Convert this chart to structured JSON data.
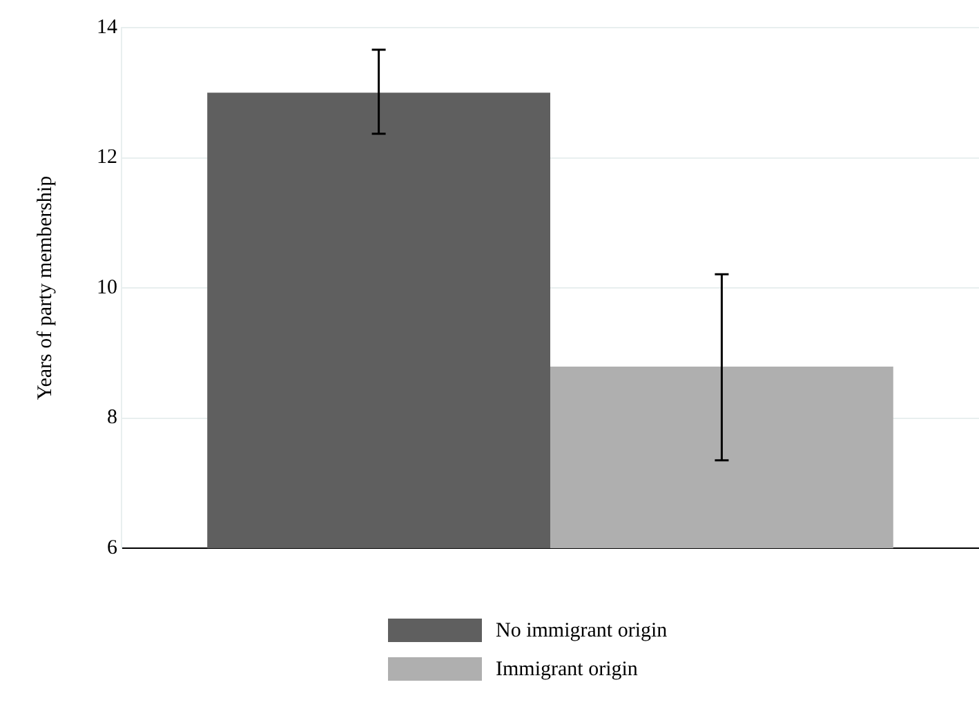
{
  "chart_data": {
    "type": "bar",
    "ylabel": "Years of party membership",
    "categories": [
      null
    ],
    "series": [
      {
        "name": "No immigrant origin",
        "color": "#5f5f5f",
        "values": [
          13.0
        ],
        "errors": [
          [
            12.37,
            13.66
          ]
        ]
      },
      {
        "name": "Immigrant origin",
        "color": "#afafaf",
        "values": [
          8.79
        ],
        "errors": [
          [
            7.35,
            10.21
          ]
        ]
      }
    ],
    "ylim": [
      6,
      14
    ],
    "yticks": [
      6,
      8,
      10,
      12,
      14
    ],
    "grid": "y",
    "legend": "bottom"
  }
}
